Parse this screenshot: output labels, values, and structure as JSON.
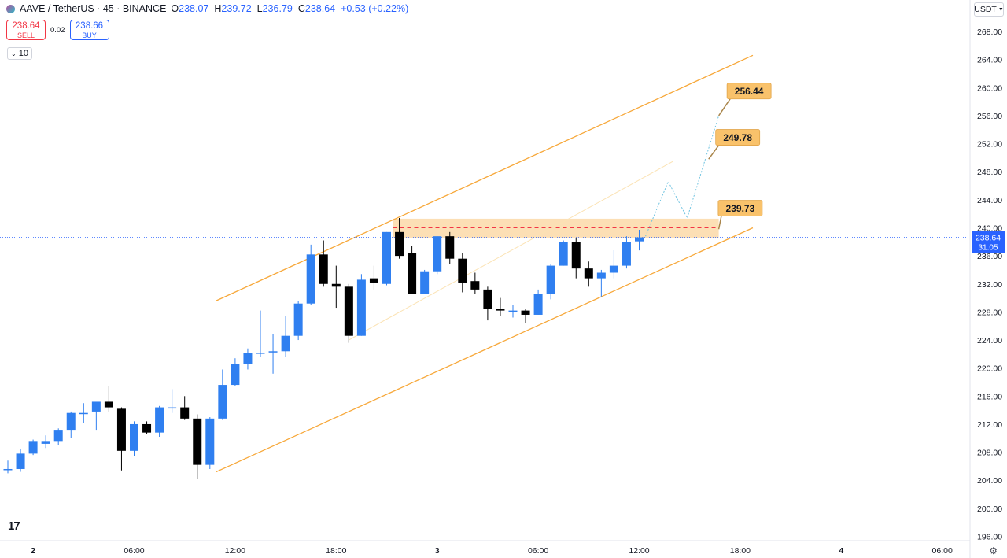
{
  "header": {
    "symbol": "AAVE / TetherUS · 45 · BINANCE",
    "open_label": "O",
    "open": "238.07",
    "high_label": "H",
    "high": "239.72",
    "low_label": "L",
    "low": "236.79",
    "close_label": "C",
    "close": "238.64",
    "change": "+0.53 (+0.22%)"
  },
  "trade": {
    "sell_price": "238.64",
    "sell_label": "SELL",
    "spread": "0.02",
    "buy_price": "238.66",
    "buy_label": "BUY"
  },
  "volume_toggle": "10",
  "currency": "USDT",
  "colors": {
    "up": "#2f7ff0",
    "down": "#000000",
    "channel": "#f7a83a",
    "zone": "#fbd9a8",
    "label_bg": "#f9c26b",
    "price_line": "#2962ff"
  },
  "chart_data": {
    "type": "candlestick",
    "title": "AAVE / TetherUS · 45 · BINANCE",
    "x_ticks": [
      {
        "label": "2",
        "x": 2
      },
      {
        "label": "06:00",
        "x": 10
      },
      {
        "label": "12:00",
        "x": 18
      },
      {
        "label": "18:00",
        "x": 26
      },
      {
        "label": "3",
        "x": 34
      },
      {
        "label": "06:00",
        "x": 42
      },
      {
        "label": "12:00",
        "x": 50
      },
      {
        "label": "18:00",
        "x": 58
      },
      {
        "label": "4",
        "x": 66
      },
      {
        "label": "06:00",
        "x": 74
      }
    ],
    "ylim": [
      194,
      270
    ],
    "y_ticks": [
      "196.00",
      "200.00",
      "204.00",
      "208.00",
      "212.00",
      "216.00",
      "220.00",
      "224.00",
      "228.00",
      "232.00",
      "236.00",
      "240.00",
      "244.00",
      "248.00",
      "252.00",
      "256.00",
      "260.00",
      "264.00",
      "268.00"
    ],
    "candles": [
      {
        "x": 0,
        "o": 205.6,
        "h": 206.8,
        "l": 205.0,
        "c": 205.6
      },
      {
        "x": 1,
        "o": 205.6,
        "h": 208.4,
        "l": 205.2,
        "c": 207.8
      },
      {
        "x": 2,
        "o": 207.8,
        "h": 209.8,
        "l": 207.6,
        "c": 209.6
      },
      {
        "x": 3,
        "o": 209.2,
        "h": 210.4,
        "l": 208.6,
        "c": 209.6
      },
      {
        "x": 4,
        "o": 209.6,
        "h": 211.4,
        "l": 209.0,
        "c": 211.2
      },
      {
        "x": 5,
        "o": 211.2,
        "h": 213.8,
        "l": 210.0,
        "c": 213.6
      },
      {
        "x": 6,
        "o": 213.6,
        "h": 215.0,
        "l": 212.2,
        "c": 213.6
      },
      {
        "x": 7,
        "o": 213.8,
        "h": 215.0,
        "l": 211.2,
        "c": 215.2
      },
      {
        "x": 8,
        "o": 215.2,
        "h": 217.4,
        "l": 213.8,
        "c": 214.4
      },
      {
        "x": 9,
        "o": 214.2,
        "h": 214.4,
        "l": 205.4,
        "c": 208.2
      },
      {
        "x": 10,
        "o": 208.2,
        "h": 212.4,
        "l": 207.4,
        "c": 212.0
      },
      {
        "x": 11,
        "o": 212.0,
        "h": 212.4,
        "l": 210.6,
        "c": 210.8
      },
      {
        "x": 12,
        "o": 210.8,
        "h": 214.6,
        "l": 210.2,
        "c": 214.4
      },
      {
        "x": 13,
        "o": 214.4,
        "h": 217.0,
        "l": 213.6,
        "c": 214.4
      },
      {
        "x": 14,
        "o": 214.4,
        "h": 216.0,
        "l": 212.6,
        "c": 212.8
      },
      {
        "x": 15,
        "o": 212.8,
        "h": 213.4,
        "l": 204.2,
        "c": 206.2
      },
      {
        "x": 16,
        "o": 206.2,
        "h": 213.0,
        "l": 205.6,
        "c": 212.8
      },
      {
        "x": 17,
        "o": 212.8,
        "h": 219.8,
        "l": 212.6,
        "c": 217.6
      },
      {
        "x": 18,
        "o": 217.6,
        "h": 221.4,
        "l": 217.4,
        "c": 220.6
      },
      {
        "x": 19,
        "o": 220.6,
        "h": 222.8,
        "l": 219.8,
        "c": 222.2
      },
      {
        "x": 20,
        "o": 222.2,
        "h": 228.2,
        "l": 221.6,
        "c": 222.2
      },
      {
        "x": 21,
        "o": 222.4,
        "h": 224.8,
        "l": 219.2,
        "c": 222.4
      },
      {
        "x": 22,
        "o": 222.4,
        "h": 227.4,
        "l": 221.6,
        "c": 224.6
      },
      {
        "x": 23,
        "o": 224.6,
        "h": 229.6,
        "l": 224.0,
        "c": 229.2
      },
      {
        "x": 24,
        "o": 229.2,
        "h": 237.6,
        "l": 229.0,
        "c": 236.2
      },
      {
        "x": 25,
        "o": 236.2,
        "h": 238.2,
        "l": 231.6,
        "c": 232.0
      },
      {
        "x": 26,
        "o": 232.0,
        "h": 234.6,
        "l": 228.6,
        "c": 231.6
      },
      {
        "x": 27,
        "o": 231.6,
        "h": 232.0,
        "l": 223.6,
        "c": 224.6
      },
      {
        "x": 28,
        "o": 224.6,
        "h": 233.4,
        "l": 224.6,
        "c": 232.6
      },
      {
        "x": 29,
        "o": 232.8,
        "h": 234.6,
        "l": 231.2,
        "c": 232.2
      },
      {
        "x": 30,
        "o": 232.0,
        "h": 239.4,
        "l": 231.8,
        "c": 239.4
      },
      {
        "x": 31,
        "o": 239.4,
        "h": 241.4,
        "l": 235.6,
        "c": 236.0
      },
      {
        "x": 32,
        "o": 236.4,
        "h": 237.4,
        "l": 230.6,
        "c": 230.6
      },
      {
        "x": 33,
        "o": 230.6,
        "h": 234.0,
        "l": 230.6,
        "c": 233.8
      },
      {
        "x": 34,
        "o": 233.8,
        "h": 238.8,
        "l": 233.4,
        "c": 238.8
      },
      {
        "x": 35,
        "o": 238.8,
        "h": 239.4,
        "l": 234.8,
        "c": 235.6
      },
      {
        "x": 36,
        "o": 235.6,
        "h": 236.4,
        "l": 230.8,
        "c": 232.2
      },
      {
        "x": 37,
        "o": 232.4,
        "h": 233.6,
        "l": 230.6,
        "c": 231.2
      },
      {
        "x": 38,
        "o": 231.2,
        "h": 231.6,
        "l": 226.8,
        "c": 228.4
      },
      {
        "x": 39,
        "o": 228.4,
        "h": 230.0,
        "l": 227.4,
        "c": 228.2
      },
      {
        "x": 40,
        "o": 228.2,
        "h": 229.0,
        "l": 227.2,
        "c": 228.2
      },
      {
        "x": 41,
        "o": 228.2,
        "h": 228.4,
        "l": 226.4,
        "c": 227.6
      },
      {
        "x": 42,
        "o": 227.6,
        "h": 231.2,
        "l": 227.6,
        "c": 230.6
      },
      {
        "x": 43,
        "o": 230.6,
        "h": 234.8,
        "l": 229.8,
        "c": 234.6
      },
      {
        "x": 44,
        "o": 234.6,
        "h": 238.2,
        "l": 234.6,
        "c": 238.0
      },
      {
        "x": 45,
        "o": 238.0,
        "h": 238.6,
        "l": 232.8,
        "c": 234.2
      },
      {
        "x": 46,
        "o": 234.2,
        "h": 235.2,
        "l": 231.6,
        "c": 232.8
      },
      {
        "x": 47,
        "o": 232.8,
        "h": 234.0,
        "l": 230.2,
        "c": 233.6
      },
      {
        "x": 48,
        "o": 233.6,
        "h": 236.8,
        "l": 232.8,
        "c": 234.6
      },
      {
        "x": 49,
        "o": 234.6,
        "h": 238.8,
        "l": 234.2,
        "c": 238.0
      },
      {
        "x": 50,
        "o": 238.07,
        "h": 239.72,
        "l": 236.79,
        "c": 238.64
      }
    ],
    "channel": {
      "upper": [
        {
          "x": 16.5,
          "y": 229.6
        },
        {
          "x": 59,
          "y": 264.6
        }
      ],
      "middle": [
        {
          "x": 27,
          "y": 224.0
        },
        {
          "x": 52.7,
          "y": 249.5
        }
      ],
      "lower": [
        {
          "x": 16.5,
          "y": 205.2
        },
        {
          "x": 59,
          "y": 240.0
        }
      ]
    },
    "zone": {
      "x1": 30.5,
      "x2": 56.3,
      "y1": 238.6,
      "y2": 241.3,
      "mid": 240.0
    },
    "projection": [
      {
        "x": 50.5,
        "y": 238.8
      },
      {
        "x": 52.3,
        "y": 246.6
      },
      {
        "x": 53.8,
        "y": 241.4
      },
      {
        "x": 56.3,
        "y": 256.0
      }
    ],
    "targets": [
      {
        "value": "256.44",
        "x": 58.7,
        "y": 259.5,
        "anchor_x": 56.3,
        "anchor_y": 256.0
      },
      {
        "value": "249.78",
        "x": 57.8,
        "y": 252.9,
        "anchor_x": 55.5,
        "anchor_y": 249.8
      },
      {
        "value": "239.73",
        "x": 58.0,
        "y": 242.8,
        "anchor_x": 56.3,
        "anchor_y": 239.8
      }
    ],
    "current_price": {
      "value": "238.64",
      "countdown": "31:05",
      "y": 238.64
    }
  }
}
